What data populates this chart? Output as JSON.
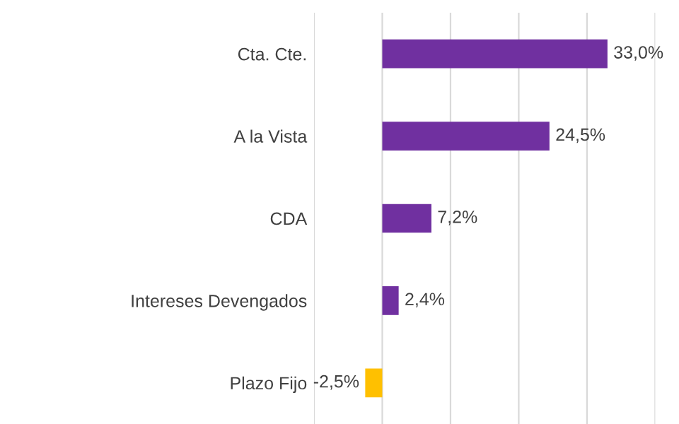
{
  "chart_data": {
    "type": "bar",
    "orientation": "horizontal",
    "categories": [
      "Cta. Cte.",
      "A la Vista",
      "CDA",
      "Intereses Devengados",
      "Plazo Fijo"
    ],
    "values": [
      33.0,
      24.5,
      7.2,
      2.4,
      -2.5
    ],
    "colors": [
      "#7030a0",
      "#7030a0",
      "#7030a0",
      "#7030a0",
      "#ffc000"
    ],
    "value_labels": [
      "33,0%",
      "24,5%",
      "7,2%",
      "2,4%",
      "-2,5%"
    ],
    "xlim": [
      -10,
      40
    ],
    "xticks": [
      {
        "value": -10,
        "label": null
      },
      {
        "value": 0,
        "label": null
      },
      {
        "value": 10,
        "label": null
      },
      {
        "value": 20,
        "label": null
      },
      {
        "value": 30,
        "label": null
      },
      {
        "value": 40,
        "label": null
      }
    ],
    "grid": "x"
  }
}
